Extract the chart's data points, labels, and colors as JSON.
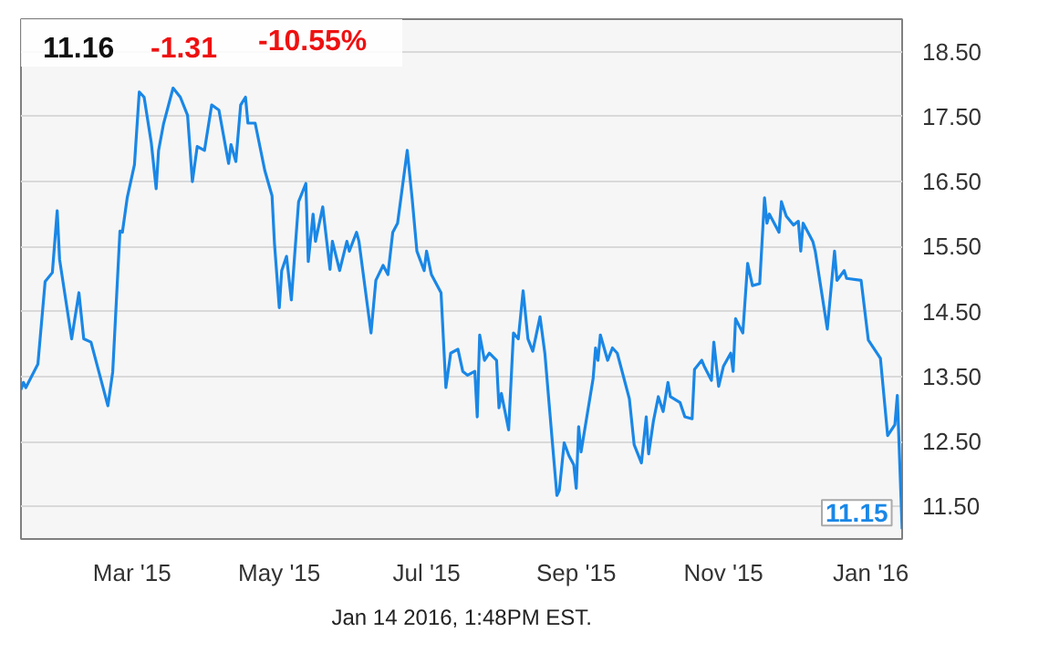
{
  "chart_data": {
    "type": "line",
    "annotations": [
      "11.16",
      "-1.31",
      "-10.55%",
      {
        "text": "11.15",
        "x": "2016-01-14",
        "y": 11.15
      },
      "Jan 14 2016, 1:48PM EST."
    ],
    "xlim": [
      "2015-01-14",
      "2016-01-14"
    ],
    "ylim": [
      11.0,
      19.0
    ],
    "xticks": [
      {
        "value": "2015-03-01",
        "label": "Mar '15"
      },
      {
        "value": "2015-05-01",
        "label": "May '15"
      },
      {
        "value": "2015-07-01",
        "label": "Jul '15"
      },
      {
        "value": "2015-09-01",
        "label": "Sep '15"
      },
      {
        "value": "2015-11-01",
        "label": "Nov '15"
      },
      {
        "value": "2016-01-01",
        "label": "Jan '16"
      }
    ],
    "yticks": [
      {
        "value": 11.5,
        "label": "11.50"
      },
      {
        "value": 12.5,
        "label": "12.50"
      },
      {
        "value": 13.5,
        "label": "13.50"
      },
      {
        "value": 14.5,
        "label": "14.50"
      },
      {
        "value": 15.5,
        "label": "15.50"
      },
      {
        "value": 16.5,
        "label": "16.50"
      },
      {
        "value": 17.5,
        "label": "17.50"
      },
      {
        "value": 18.5,
        "label": "18.50"
      }
    ],
    "grid": true,
    "x": [
      "2015-01-14",
      "2015-01-15",
      "2015-01-16",
      "2015-01-21",
      "2015-01-24",
      "2015-01-27",
      "2015-01-29",
      "2015-01-30",
      "2015-02-04",
      "2015-02-07",
      "2015-02-09",
      "2015-02-12",
      "2015-02-19",
      "2015-02-21",
      "2015-02-24",
      "2015-02-25",
      "2015-02-27",
      "2015-03-02",
      "2015-03-04",
      "2015-03-06",
      "2015-03-09",
      "2015-03-11",
      "2015-03-12",
      "2015-03-14",
      "2015-03-18",
      "2015-03-21",
      "2015-03-24",
      "2015-03-26",
      "2015-03-28",
      "2015-03-31",
      "2015-04-03",
      "2015-04-06",
      "2015-04-10",
      "2015-04-11",
      "2015-04-13",
      "2015-04-15",
      "2015-04-17",
      "2015-04-18",
      "2015-04-21",
      "2015-04-25",
      "2015-04-28",
      "2015-04-29",
      "2015-05-01",
      "2015-05-02",
      "2015-05-04",
      "2015-05-06",
      "2015-05-09",
      "2015-05-12",
      "2015-05-13",
      "2015-05-15",
      "2015-05-16",
      "2015-05-19",
      "2015-05-22",
      "2015-05-23",
      "2015-05-26",
      "2015-05-29",
      "2015-05-30",
      "2015-06-02",
      "2015-06-03",
      "2015-06-08",
      "2015-06-10",
      "2015-06-13",
      "2015-06-15",
      "2015-06-17",
      "2015-06-19",
      "2015-06-23",
      "2015-06-25",
      "2015-06-27",
      "2015-06-30",
      "2015-07-01",
      "2015-07-03",
      "2015-07-07",
      "2015-07-09",
      "2015-07-11",
      "2015-07-14",
      "2015-07-16",
      "2015-07-18",
      "2015-07-21",
      "2015-07-22",
      "2015-07-23",
      "2015-07-25",
      "2015-07-27",
      "2015-07-30",
      "2015-07-31",
      "2015-08-01",
      "2015-08-04",
      "2015-08-06",
      "2015-08-08",
      "2015-08-10",
      "2015-08-12",
      "2015-08-14",
      "2015-08-17",
      "2015-08-19",
      "2015-08-22",
      "2015-08-24",
      "2015-08-25",
      "2015-08-27",
      "2015-08-29",
      "2015-08-31",
      "2015-09-01",
      "2015-09-02",
      "2015-09-03",
      "2015-09-08",
      "2015-09-09",
      "2015-09-10",
      "2015-09-11",
      "2015-09-14",
      "2015-09-16",
      "2015-09-18",
      "2015-09-23",
      "2015-09-25",
      "2015-09-28",
      "2015-09-30",
      "2015-10-01",
      "2015-10-03",
      "2015-10-05",
      "2015-10-07",
      "2015-10-09",
      "2015-10-10",
      "2015-10-14",
      "2015-10-16",
      "2015-10-19",
      "2015-10-20",
      "2015-10-23",
      "2015-10-24",
      "2015-10-27",
      "2015-10-28",
      "2015-10-30",
      "2015-11-01",
      "2015-11-04",
      "2015-11-05",
      "2015-11-06",
      "2015-11-09",
      "2015-11-11",
      "2015-11-13",
      "2015-11-16",
      "2015-11-18",
      "2015-11-19",
      "2015-11-20",
      "2015-11-24",
      "2015-11-25",
      "2015-11-27",
      "2015-11-30",
      "2015-12-02",
      "2015-12-03",
      "2015-12-04",
      "2015-12-08",
      "2015-12-09",
      "2015-12-14",
      "2015-12-17",
      "2015-12-18",
      "2015-12-21",
      "2015-12-22",
      "2015-12-28",
      "2015-12-31",
      "2016-01-05",
      "2016-01-08",
      "2016-01-11",
      "2016-01-12",
      "2016-01-14"
    ],
    "series": [
      {
        "color": "#1a87e6",
        "values": [
          13.3,
          13.41,
          13.33,
          13.69,
          14.96,
          15.1,
          16.05,
          15.3,
          14.08,
          14.79,
          14.08,
          14.03,
          13.05,
          13.57,
          15.74,
          15.72,
          16.25,
          16.76,
          17.88,
          17.8,
          17.09,
          16.39,
          16.98,
          17.38,
          17.94,
          17.8,
          17.52,
          16.5,
          17.04,
          16.98,
          17.68,
          17.6,
          16.78,
          17.07,
          16.81,
          17.68,
          17.8,
          17.4,
          17.4,
          16.67,
          16.28,
          15.55,
          14.56,
          15.13,
          15.35,
          14.68,
          16.19,
          16.47,
          15.27,
          16.0,
          15.58,
          16.11,
          15.15,
          15.58,
          15.13,
          15.58,
          15.43,
          15.72,
          15.58,
          14.17,
          14.98,
          15.21,
          15.07,
          15.72,
          15.86,
          16.98,
          16.25,
          15.43,
          15.13,
          15.43,
          15.07,
          14.79,
          13.33,
          13.86,
          13.92,
          13.58,
          13.52,
          13.58,
          12.88,
          14.14,
          13.75,
          13.86,
          13.75,
          13.02,
          13.24,
          12.68,
          14.17,
          14.08,
          14.82,
          14.08,
          13.89,
          14.42,
          13.86,
          12.54,
          11.67,
          11.75,
          12.48,
          12.28,
          12.14,
          11.78,
          12.73,
          12.34,
          13.47,
          13.94,
          13.75,
          14.14,
          13.75,
          13.94,
          13.86,
          13.16,
          12.45,
          12.17,
          12.88,
          12.31,
          12.82,
          13.19,
          12.96,
          13.41,
          13.19,
          13.1,
          12.88,
          12.85,
          13.61,
          13.75,
          13.66,
          13.44,
          14.03,
          13.35,
          13.66,
          13.86,
          13.58,
          14.39,
          14.17,
          15.24,
          14.9,
          14.93,
          16.25,
          15.86,
          16.0,
          15.72,
          16.19,
          15.97,
          15.83,
          15.89,
          15.43,
          15.86,
          15.58,
          15.43,
          14.23,
          15.43,
          14.98,
          15.13,
          15.01,
          14.98,
          14.06,
          13.78,
          12.59,
          12.76,
          13.21,
          11.15
        ]
      }
    ]
  }
}
